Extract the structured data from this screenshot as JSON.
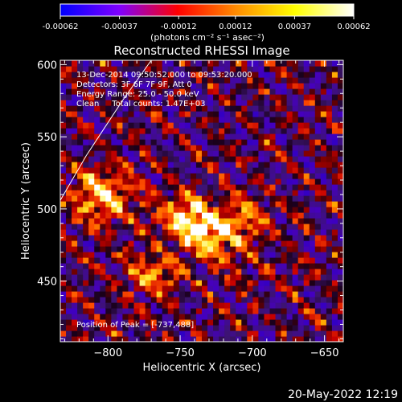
{
  "chart_data": {
    "type": "heatmap",
    "title": "Reconstructed RHESSI Image",
    "colorbar": {
      "ticks": [
        "-0.00062",
        "-0.00037",
        "-0.00012",
        "0.00012",
        "0.00037",
        "0.00062"
      ],
      "tick_values": [
        -0.00062,
        -0.00037,
        -0.00012,
        0.00012,
        0.00037,
        0.00062
      ],
      "range": [
        -0.00062,
        0.00062
      ],
      "unit": "(photons cm⁻² s⁻¹ asec⁻²)",
      "colormap": [
        "#0000ff",
        "#7f00ff",
        "#ff0000",
        "#ff8c00",
        "#ffff00",
        "#ffffff"
      ]
    },
    "xlabel": "Heliocentric X (arcsec)",
    "ylabel": "Heliocentric Y (arcsec)",
    "xlim": [
      -833,
      -637
    ],
    "ylim": [
      408,
      603
    ],
    "xticks": [
      -800,
      -750,
      -700,
      -650
    ],
    "xtick_labels": [
      "−800",
      "−750",
      "−700",
      "−650"
    ],
    "yticks": [
      450,
      500,
      550,
      600
    ],
    "ytick_labels": [
      "450",
      "500",
      "550",
      "600"
    ],
    "grid_cells_per_side": 50,
    "sources": [
      {
        "x": -737,
        "y": 488,
        "peak": 1.0,
        "sx": 20,
        "sy": 11,
        "rot": -30
      },
      {
        "x": -805,
        "y": 510,
        "peak": 0.7,
        "sx": 15,
        "sy": 14,
        "rot": 0
      },
      {
        "x": -770,
        "y": 455,
        "peak": 0.55,
        "sx": 14,
        "sy": 10,
        "rot": 0
      },
      {
        "x": -705,
        "y": 495,
        "peak": 0.5,
        "sx": 12,
        "sy": 10,
        "rot": 0
      }
    ],
    "limb_arc": [
      [
        -833,
        506
      ],
      [
        -815,
        537
      ],
      [
        -790,
        575
      ],
      [
        -770,
        603
      ]
    ],
    "annotations": {
      "time_range": "13-Dec-2014 09:50:52.000 to 09:53:20.000",
      "detectors": "Detectors: 3F 6F 7F 9F, Att 0",
      "energy_range": "Energy Range: 25.0 - 50.0 keV",
      "clean_counts": "Clean     Total counts: 1.47E+03",
      "peak_position": "Position of Peak = [-737,488]"
    }
  },
  "footer": {
    "timestamp": "20-May-2022 12:19"
  }
}
